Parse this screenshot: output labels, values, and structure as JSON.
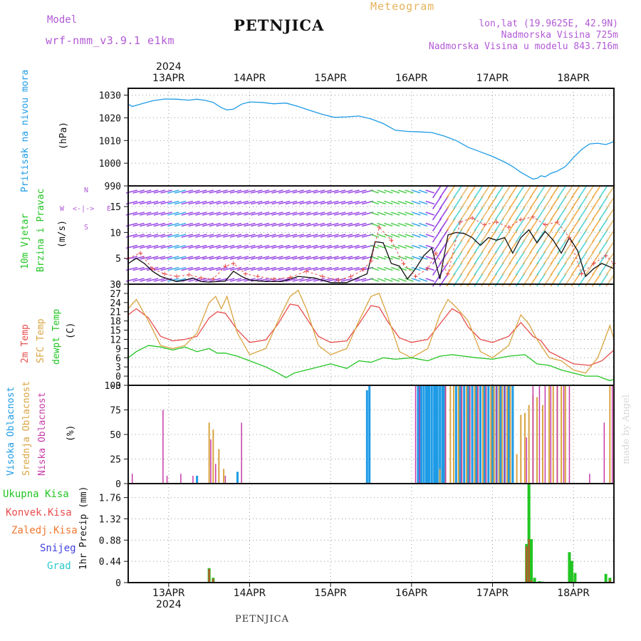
{
  "header": {
    "model_label": "Model",
    "model_name": "wrf-nmm_v3.9.1 e1km",
    "station": "PETNJICA",
    "product": "Meteogram",
    "lonlat": "lon,lat (19.9625E, 42.9N)",
    "elevation": "Nadmorska Visina 725m",
    "model_elevation": "Nadmorska Visina u modelu 843.716m",
    "footer_station": "PETNJICA",
    "credit": "made by Angel"
  },
  "colors": {
    "pressure": "#1e9be6",
    "temp2m": "#e84c4c",
    "sfc_temp": "#d9a441",
    "dewpoint": "#22c522",
    "high_cloud": "#1e9be6",
    "mid_cloud": "#d9a441",
    "low_cloud": "#c83ca8",
    "total_precip": "#22c522",
    "convective_precip": "#e84c4c",
    "frozen_precip": "#f07830",
    "snow": "#4040e0",
    "hail": "#30c8c8"
  },
  "x_axis": {
    "year": "2024",
    "ticks": [
      "13APR",
      "14APR",
      "15APR",
      "16APR",
      "17APR",
      "18APR"
    ],
    "start_day": 12.5,
    "end_day": 18.5
  },
  "chart_data": [
    {
      "type": "line",
      "id": "pressure",
      "ylabel": [
        "Pritisak na nivou mora",
        "(hPa)"
      ],
      "ylim": [
        990,
        1033
      ],
      "yticks": [
        990,
        1000,
        1010,
        1020,
        1030
      ],
      "series": [
        {
          "name": "Pritisak na nivou mora",
          "x": [
            12.5,
            12.55,
            12.65,
            12.8,
            12.95,
            13.1,
            13.25,
            13.35,
            13.45,
            13.55,
            13.65,
            13.72,
            13.8,
            13.9,
            14.0,
            14.15,
            14.3,
            14.45,
            14.6,
            14.75,
            14.9,
            15.05,
            15.2,
            15.35,
            15.5,
            15.65,
            15.8,
            15.95,
            16.1,
            16.25,
            16.4,
            16.55,
            16.7,
            16.85,
            17.0,
            17.15,
            17.25,
            17.35,
            17.45,
            17.5,
            17.55,
            17.6,
            17.65,
            17.72,
            17.8,
            17.9,
            18.0,
            18.1,
            18.2,
            18.3,
            18.4,
            18.5
          ],
          "values": [
            1026,
            1025,
            1026,
            1027.5,
            1028.3,
            1028.2,
            1027.8,
            1028.2,
            1027.7,
            1026.8,
            1024.5,
            1023.5,
            1023.8,
            1026,
            1027,
            1026.8,
            1026.2,
            1026.5,
            1025,
            1023.2,
            1021.5,
            1020.2,
            1020.4,
            1020.8,
            1019.5,
            1017.5,
            1014.5,
            1014,
            1013.8,
            1013.5,
            1012,
            1010,
            1007,
            1005,
            1003,
            1000.5,
            998.5,
            996,
            994,
            993,
            993.3,
            994.5,
            994,
            995.5,
            996.5,
            998.5,
            1002.5,
            1006,
            1008.5,
            1008.8,
            1008.2,
            1009.5
          ]
        }
      ]
    },
    {
      "type": "line",
      "id": "wind",
      "ylabel": [
        "10m Vjetar",
        "Brzina i Pravac",
        "(m/s)"
      ],
      "ylim": [
        0,
        19
      ],
      "yticks": [
        0,
        5,
        10,
        15
      ],
      "compass": [
        "N",
        "E",
        "S",
        "W"
      ],
      "series": [
        {
          "name": "Brzina",
          "x": [
            12.5,
            12.6,
            12.7,
            12.8,
            12.9,
            13.0,
            13.1,
            13.2,
            13.3,
            13.4,
            13.5,
            13.6,
            13.7,
            13.8,
            13.9,
            14.0,
            14.2,
            14.4,
            14.6,
            14.8,
            15.0,
            15.2,
            15.3,
            15.45,
            15.55,
            15.65,
            15.75,
            15.85,
            15.95,
            16.05,
            16.15,
            16.25,
            16.35,
            16.45,
            16.55,
            16.65,
            16.75,
            16.85,
            16.95,
            17.05,
            17.15,
            17.25,
            17.35,
            17.45,
            17.55,
            17.65,
            17.75,
            17.85,
            17.95,
            18.05,
            18.15,
            18.25,
            18.35,
            18.5
          ],
          "values": [
            4,
            5,
            4,
            2.5,
            1.5,
            1,
            0.5,
            0.8,
            1.2,
            0.5,
            0.4,
            0.5,
            0.6,
            2.5,
            1.5,
            0.8,
            0.5,
            0.5,
            1.5,
            1.2,
            0.3,
            0.3,
            1,
            2,
            8.2,
            8,
            4,
            3.5,
            1,
            3,
            5.5,
            7,
            1,
            9.5,
            10,
            9.8,
            9,
            7.5,
            9,
            8.5,
            9,
            6,
            9,
            10.5,
            8,
            10.2,
            8.5,
            6,
            9,
            6.5,
            1.5,
            3,
            4,
            3
          ]
        },
        {
          "name": "Udari",
          "x": [
            12.5,
            12.65,
            12.8,
            12.95,
            13.1,
            13.25,
            13.4,
            13.55,
            13.7,
            13.8,
            13.95,
            14.1,
            14.3,
            14.5,
            14.7,
            14.9,
            15.1,
            15.25,
            15.4,
            15.5,
            15.6,
            15.75,
            15.9,
            16.05,
            16.2,
            16.3,
            16.45,
            16.6,
            16.75,
            16.9,
            17.05,
            17.2,
            17.35,
            17.5,
            17.65,
            17.8,
            17.95,
            18.1,
            18.25,
            18.4,
            18.5
          ],
          "values": [
            5,
            6,
            3,
            2,
            1.5,
            1.8,
            1.2,
            1,
            3.5,
            4,
            2,
            1.5,
            1,
            1.3,
            2.5,
            1.5,
            0.8,
            1.5,
            2.8,
            4.5,
            11,
            8.5,
            4,
            1.5,
            3,
            6,
            2,
            12,
            12.8,
            11.5,
            12,
            11,
            12.5,
            13,
            11.5,
            12,
            9,
            2,
            4,
            5.5,
            4
          ]
        }
      ]
    },
    {
      "type": "line",
      "id": "temperature",
      "ylabel": [
        "2m Temp",
        "SFC Temp",
        "dewpt Temp",
        "(C)"
      ],
      "ylim": [
        -3,
        30
      ],
      "yticks": [
        -3,
        0,
        3,
        6,
        9,
        12,
        15,
        18,
        21,
        24,
        27,
        30
      ],
      "series": [
        {
          "name": "2m Temp",
          "x": [
            12.5,
            12.6,
            12.75,
            12.9,
            13.05,
            13.2,
            13.35,
            13.5,
            13.6,
            13.7,
            13.85,
            14.0,
            14.2,
            14.35,
            14.5,
            14.6,
            14.7,
            14.85,
            15.0,
            15.2,
            15.35,
            15.5,
            15.6,
            15.7,
            15.85,
            16.0,
            16.2,
            16.35,
            16.5,
            16.6,
            16.7,
            16.85,
            17.0,
            17.2,
            17.35,
            17.5,
            17.6,
            17.7,
            17.85,
            18.0,
            18.2,
            18.35,
            18.5
          ],
          "values": [
            20,
            22,
            19,
            13,
            11.5,
            12,
            13,
            19,
            21,
            20.5,
            15,
            11,
            11.8,
            17,
            23.5,
            23,
            19,
            13,
            11,
            11.5,
            17,
            23,
            22.5,
            18,
            12.5,
            11,
            12,
            17,
            22,
            20.5,
            16,
            12,
            11,
            13,
            17.5,
            13,
            11.5,
            8,
            6,
            4,
            3.5,
            5,
            8.5
          ]
        },
        {
          "name": "SFC Temp",
          "x": [
            12.5,
            12.6,
            12.75,
            12.9,
            13.05,
            13.2,
            13.35,
            13.5,
            13.58,
            13.65,
            13.72,
            13.85,
            14.0,
            14.2,
            14.35,
            14.5,
            14.6,
            14.7,
            14.85,
            15.0,
            15.2,
            15.35,
            15.5,
            15.6,
            15.7,
            15.85,
            16.0,
            16.2,
            16.35,
            16.45,
            16.55,
            16.7,
            16.85,
            17.0,
            17.2,
            17.35,
            17.45,
            17.55,
            17.7,
            17.85,
            18.0,
            18.15,
            18.3,
            18.45,
            18.5
          ],
          "values": [
            22,
            25,
            18,
            10,
            9,
            10,
            14,
            24,
            26,
            22,
            26,
            14,
            7,
            9,
            18,
            26,
            28,
            22,
            10,
            7,
            9,
            18,
            26,
            27,
            20,
            8,
            6,
            9,
            20,
            25,
            22.5,
            18,
            8,
            6,
            10,
            20,
            17,
            12,
            6,
            5,
            2,
            1,
            6,
            16.5,
            12
          ]
        },
        {
          "name": "dewpt Temp",
          "x": [
            12.5,
            12.6,
            12.75,
            12.9,
            13.05,
            13.2,
            13.35,
            13.5,
            13.6,
            13.7,
            13.85,
            14.0,
            14.2,
            14.35,
            14.45,
            14.55,
            14.7,
            14.85,
            15.0,
            15.2,
            15.35,
            15.5,
            15.65,
            15.8,
            16.0,
            16.2,
            16.35,
            16.5,
            16.65,
            16.8,
            17.0,
            17.2,
            17.4,
            17.55,
            17.7,
            17.85,
            18.0,
            18.15,
            18.3,
            18.45,
            18.5
          ],
          "values": [
            6,
            8,
            10,
            9.5,
            8.5,
            9.5,
            8,
            9,
            7.5,
            7.5,
            6.5,
            5,
            3,
            1,
            -0.5,
            1,
            2,
            3,
            4,
            2.5,
            5,
            4.5,
            6,
            5.5,
            6,
            5,
            6.5,
            7,
            6.5,
            6,
            5.5,
            6.5,
            7,
            4,
            3.5,
            2,
            1,
            0,
            0,
            -1.5,
            -1
          ]
        }
      ]
    },
    {
      "type": "bar",
      "id": "clouds",
      "ylabel": [
        "Visoka Oblacnost",
        "Srednja Oblacnost",
        "Niska Oblacnost",
        "(%)"
      ],
      "ylim": [
        0,
        100
      ],
      "yticks": [
        0,
        25,
        50,
        75,
        100
      ],
      "series": [
        {
          "name": "Visoka Oblacnost",
          "x": [
            13.35,
            13.85,
            15.45,
            15.48,
            16.08,
            16.1,
            16.12,
            16.15,
            16.18,
            16.2,
            16.22,
            16.25,
            16.28,
            16.3,
            16.32,
            16.35,
            16.38,
            16.4,
            16.55,
            16.6,
            16.65,
            16.7,
            16.75,
            16.8,
            16.85,
            16.9,
            16.95,
            17.0,
            17.05,
            17.1,
            17.15,
            17.2,
            17.25
          ],
          "values": [
            8,
            12,
            95,
            100,
            100,
            100,
            100,
            100,
            100,
            100,
            100,
            100,
            100,
            100,
            100,
            100,
            100,
            100,
            100,
            100,
            100,
            100,
            100,
            100,
            100,
            100,
            100,
            100,
            100,
            100,
            100,
            100,
            100
          ]
        },
        {
          "name": "Srednja Oblacnost",
          "x": [
            13.5,
            13.55,
            13.62,
            13.68,
            16.35,
            16.42,
            16.48,
            16.52,
            16.58,
            16.62,
            16.68,
            16.72,
            16.78,
            16.82,
            16.88,
            16.92,
            16.98,
            17.02,
            17.08,
            17.12,
            17.18,
            17.22,
            17.3,
            17.35,
            17.4,
            17.45,
            17.5,
            17.55,
            17.62,
            17.7,
            17.75,
            17.8,
            17.85,
            17.9,
            18.45
          ],
          "values": [
            62,
            55,
            35,
            15,
            15,
            100,
            100,
            100,
            100,
            100,
            100,
            100,
            100,
            100,
            100,
            100,
            100,
            100,
            100,
            100,
            100,
            100,
            30,
            70,
            72,
            80,
            90,
            88,
            80,
            100,
            100,
            100,
            100,
            100,
            100
          ]
        },
        {
          "name": "Niska Oblacnost",
          "x": [
            12.55,
            12.93,
            12.98,
            13.15,
            13.3,
            13.52,
            13.58,
            13.7,
            13.9,
            16.05,
            16.1,
            16.42,
            16.62,
            16.72,
            16.82,
            16.92,
            17.05,
            17.15,
            17.42,
            17.5,
            17.58,
            17.65,
            17.72,
            17.8,
            17.88,
            17.95,
            18.2,
            18.38,
            18.48
          ],
          "values": [
            10,
            75,
            8,
            10,
            8,
            45,
            20,
            8,
            62,
            100,
            100,
            100,
            100,
            100,
            100,
            100,
            100,
            100,
            47,
            100,
            100,
            100,
            100,
            100,
            100,
            100,
            10,
            62,
            100
          ]
        }
      ]
    },
    {
      "type": "bar",
      "id": "precip",
      "ylabel": [
        "1hr Precip (mm)"
      ],
      "legend": [
        "Ukupna Kisa",
        "Konvek.Kisa",
        "Zaledj.Kisa",
        "Snijeg",
        "Grad"
      ],
      "ylim": [
        0,
        2.05
      ],
      "yticks": [
        0,
        0.44,
        0.88,
        1.32,
        1.76
      ],
      "series": [
        {
          "name": "Ukupna Kisa",
          "x": [
            13.5,
            13.55,
            17.42,
            17.45,
            17.48,
            17.52,
            17.58,
            17.62,
            17.95,
            17.98,
            18.02,
            18.4,
            18.45
          ],
          "values": [
            0.3,
            0.1,
            0.8,
            2.05,
            0.9,
            0.1,
            0.03,
            0.02,
            0.63,
            0.45,
            0.2,
            0.18,
            0.1
          ]
        },
        {
          "name": "Konvek.Kisa",
          "x": [
            13.5,
            13.55,
            17.42,
            17.45,
            17.48,
            17.95,
            18.45
          ],
          "values": [
            0.28,
            0.08,
            0.75,
            0.9,
            0.05,
            0.02,
            0.05
          ]
        }
      ]
    }
  ]
}
